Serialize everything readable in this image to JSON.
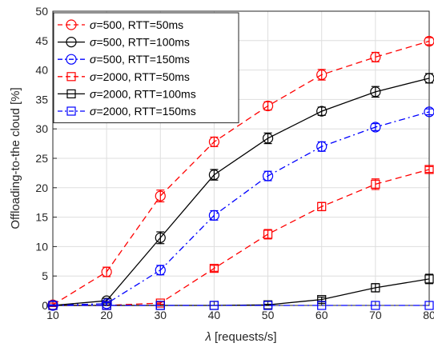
{
  "chart_data": {
    "type": "line",
    "title": "",
    "xlabel_symbol": "λ",
    "xlabel_rest": " [requests/s]",
    "ylabel": "Offloading-to-the cloud [%]",
    "xlim": [
      10,
      80
    ],
    "ylim": [
      0,
      50
    ],
    "xticks": [
      10,
      20,
      30,
      40,
      50,
      60,
      70,
      80
    ],
    "yticks": [
      0,
      5,
      10,
      15,
      20,
      25,
      30,
      35,
      40,
      45,
      50
    ],
    "grid": true,
    "legend_position": "top-left",
    "x": [
      10,
      20,
      30,
      40,
      50,
      60,
      70,
      80
    ],
    "series": [
      {
        "name": "σ=500, RTT=50ms",
        "sigma": "σ",
        "rest": "=500, RTT=50ms",
        "color": "#ff0000",
        "dash": "dash",
        "marker": "circle",
        "values": [
          0.1,
          5.7,
          18.6,
          27.8,
          33.9,
          39.2,
          42.2,
          44.9
        ]
      },
      {
        "name": "σ=500, RTT=100ms",
        "sigma": "σ",
        "rest": "=500, RTT=100ms",
        "color": "#000000",
        "dash": "solid",
        "marker": "circle",
        "values": [
          0.0,
          0.8,
          11.5,
          22.2,
          28.4,
          33.0,
          36.3,
          38.6
        ]
      },
      {
        "name": "σ=500, RTT=150ms",
        "sigma": "σ",
        "rest": "=500, RTT=150ms",
        "color": "#0000ff",
        "dash": "dashdot",
        "marker": "circle",
        "values": [
          0.0,
          0.3,
          6.0,
          15.3,
          22.0,
          27.0,
          30.3,
          32.9
        ]
      },
      {
        "name": "σ=2000, RTT=50ms",
        "sigma": "σ",
        "rest": "=2000, RTT=50ms",
        "color": "#ff0000",
        "dash": "dash",
        "marker": "square",
        "values": [
          0.0,
          0.0,
          0.4,
          6.3,
          12.1,
          16.8,
          20.6,
          23.1
        ]
      },
      {
        "name": "σ=2000, RTT=100ms",
        "sigma": "σ",
        "rest": "=2000, RTT=100ms",
        "color": "#000000",
        "dash": "solid",
        "marker": "square",
        "values": [
          0.0,
          0.0,
          0.0,
          0.0,
          0.1,
          1.0,
          3.0,
          4.5
        ]
      },
      {
        "name": "σ=2000, RTT=150ms",
        "sigma": "σ",
        "rest": "=2000, RTT=150ms",
        "color": "#0000ff",
        "dash": "dashdot",
        "marker": "square",
        "values": [
          0.0,
          0.0,
          0.0,
          0.0,
          0.0,
          0.0,
          0.0,
          0.0
        ]
      }
    ],
    "error_bars": [
      [
        0.3,
        0.8,
        1.0,
        0.8,
        0.7,
        0.9,
        0.8,
        0.6
      ],
      [
        0.1,
        0.4,
        1.0,
        0.9,
        0.9,
        0.7,
        0.9,
        0.8
      ],
      [
        0.1,
        0.2,
        0.8,
        0.8,
        0.8,
        0.8,
        0.6,
        0.5
      ],
      [
        0.0,
        0.0,
        0.2,
        0.5,
        0.8,
        0.7,
        0.9,
        0.5
      ],
      [
        0.0,
        0.0,
        0.0,
        0.0,
        0.1,
        0.4,
        0.7,
        0.8
      ],
      [
        0.0,
        0.0,
        0.0,
        0.0,
        0.0,
        0.0,
        0.0,
        0.0
      ]
    ]
  }
}
